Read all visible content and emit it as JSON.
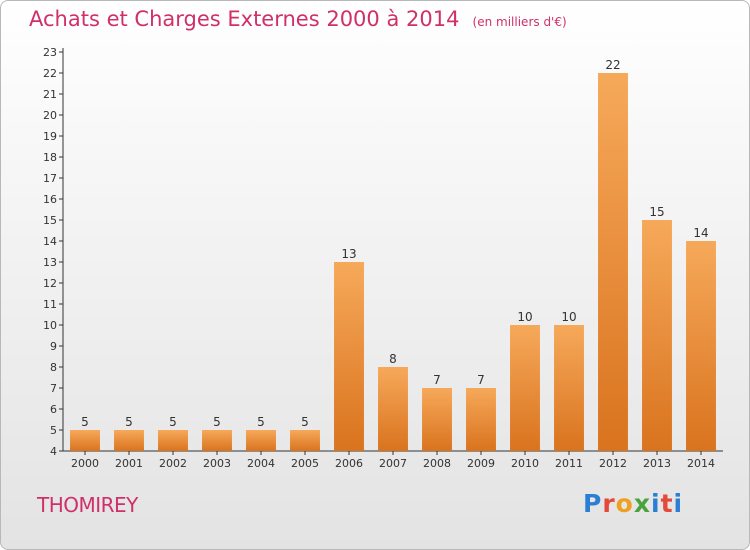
{
  "header": {
    "title": "Achats et Charges Externes 2000 à 2014",
    "subtitle": "(en milliers d'€)"
  },
  "footer": {
    "place": "THOMIREY",
    "logo_text": "Proxiti"
  },
  "colors": {
    "title": "#d0306a",
    "bar_top": "#f6a95a",
    "bar_bottom": "#d9731e",
    "axis": "#333333"
  },
  "chart_data": {
    "type": "bar",
    "title": "Achats et Charges Externes 2000 à 2014",
    "subtitle": "(en milliers d'€)",
    "categories": [
      "2000",
      "2001",
      "2002",
      "2003",
      "2004",
      "2005",
      "2006",
      "2007",
      "2008",
      "2009",
      "2010",
      "2011",
      "2012",
      "2013",
      "2014"
    ],
    "values": [
      5,
      5,
      5,
      5,
      5,
      5,
      13,
      8,
      7,
      7,
      10,
      10,
      22,
      15,
      14
    ],
    "ylim": [
      4,
      23
    ],
    "yticks": [
      4,
      5,
      6,
      7,
      8,
      9,
      10,
      11,
      12,
      13,
      14,
      15,
      16,
      17,
      18,
      19,
      20,
      21,
      22,
      23
    ],
    "data_labels": true,
    "grid": false,
    "legend": "none",
    "xlabel": "",
    "ylabel": ""
  }
}
